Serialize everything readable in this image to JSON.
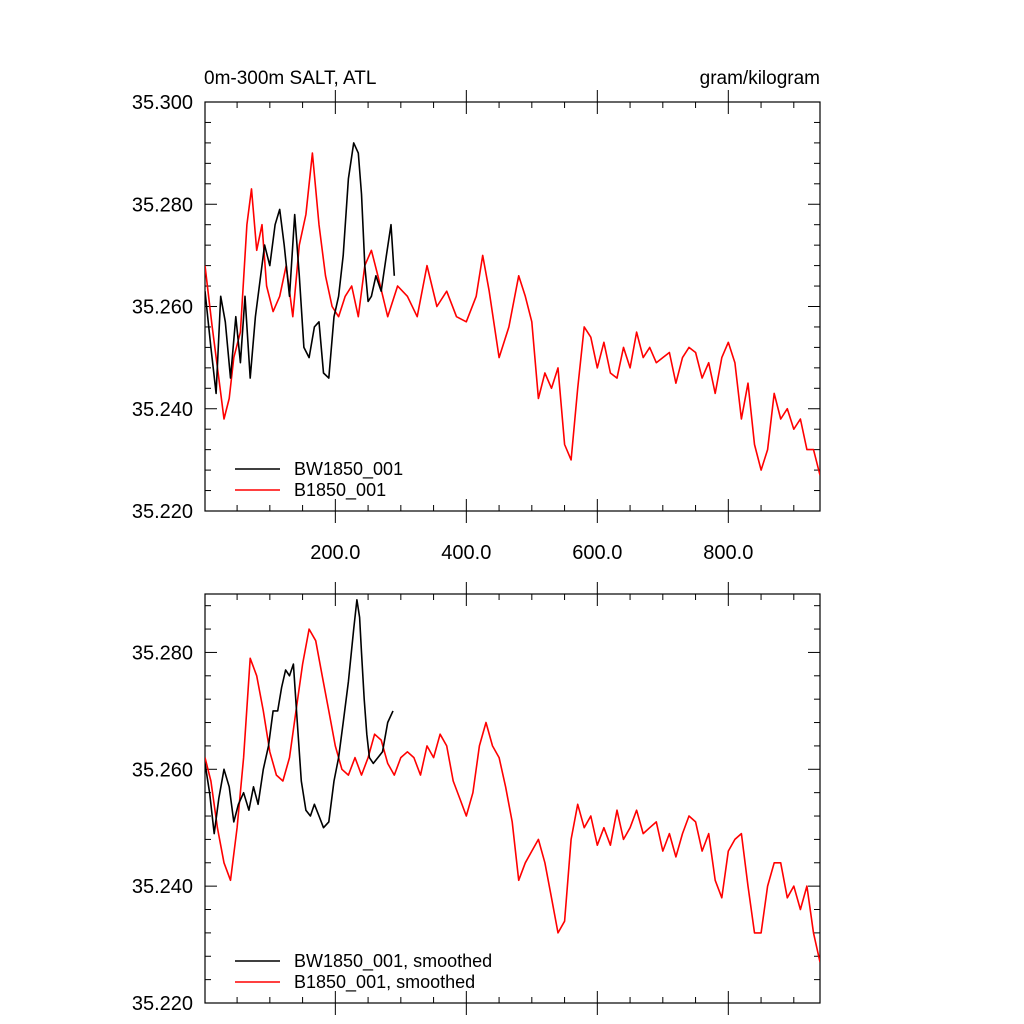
{
  "chart_data": [
    {
      "type": "line",
      "title_left": "0m-300m SALT, ATL",
      "title_right": "gram/kilogram",
      "xlabel": "",
      "ylabel": "",
      "xlim": [
        1,
        940
      ],
      "ylim": [
        35.22,
        35.3
      ],
      "x_ticks": [
        200,
        400,
        600,
        800
      ],
      "x_tick_labels": [
        "200.0",
        "400.0",
        "600.0",
        "800.0"
      ],
      "y_ticks": [
        35.22,
        35.24,
        35.26,
        35.28,
        35.3
      ],
      "y_tick_labels": [
        "35.220",
        "35.240",
        "35.260",
        "35.280",
        "35.300"
      ],
      "grid": false,
      "legend": "bottom-left",
      "series": [
        {
          "name": "BW1850_001",
          "color": "#000000",
          "x": [
            1,
            10,
            18,
            25,
            32,
            40,
            48,
            55,
            62,
            70,
            78,
            85,
            92,
            100,
            108,
            115,
            122,
            130,
            138,
            145,
            152,
            160,
            168,
            175,
            182,
            190,
            198,
            205,
            212,
            220,
            228,
            235,
            240,
            245,
            250,
            255,
            262,
            270,
            278,
            285,
            290
          ],
          "values": [
            35.263,
            35.252,
            35.243,
            35.262,
            35.257,
            35.246,
            35.258,
            35.249,
            35.262,
            35.246,
            35.258,
            35.265,
            35.272,
            35.268,
            35.276,
            35.279,
            35.272,
            35.262,
            35.278,
            35.266,
            35.252,
            35.25,
            35.256,
            35.257,
            35.247,
            35.246,
            35.258,
            35.262,
            35.27,
            35.285,
            35.292,
            35.29,
            35.282,
            35.268,
            35.261,
            35.262,
            35.266,
            35.263,
            35.27,
            35.276,
            35.266
          ]
        },
        {
          "name": "B1850_001",
          "color": "#ff0000",
          "x": [
            1,
            12,
            22,
            30,
            38,
            45,
            55,
            65,
            72,
            80,
            88,
            95,
            105,
            115,
            125,
            135,
            145,
            155,
            165,
            175,
            185,
            195,
            205,
            215,
            225,
            235,
            245,
            255,
            265,
            280,
            295,
            310,
            325,
            340,
            355,
            370,
            385,
            400,
            415,
            425,
            435,
            450,
            465,
            480,
            490,
            500,
            510,
            520,
            530,
            540,
            550,
            560,
            570,
            580,
            590,
            600,
            610,
            620,
            630,
            640,
            650,
            660,
            670,
            680,
            690,
            700,
            710,
            720,
            730,
            740,
            750,
            760,
            770,
            780,
            790,
            800,
            810,
            820,
            830,
            840,
            850,
            860,
            870,
            880,
            890,
            900,
            910,
            920,
            930,
            940
          ],
          "values": [
            35.268,
            35.256,
            35.246,
            35.238,
            35.242,
            35.25,
            35.255,
            35.276,
            35.283,
            35.271,
            35.276,
            35.264,
            35.259,
            35.262,
            35.268,
            35.258,
            35.272,
            35.278,
            35.29,
            35.276,
            35.266,
            35.26,
            35.258,
            35.262,
            35.264,
            35.258,
            35.268,
            35.271,
            35.266,
            35.258,
            35.264,
            35.262,
            35.258,
            35.268,
            35.26,
            35.263,
            35.258,
            35.257,
            35.262,
            35.27,
            35.263,
            35.25,
            35.256,
            35.266,
            35.262,
            35.257,
            35.242,
            35.247,
            35.244,
            35.248,
            35.233,
            35.23,
            35.244,
            35.256,
            35.254,
            35.248,
            35.253,
            35.247,
            35.246,
            35.252,
            35.248,
            35.255,
            35.25,
            35.252,
            35.249,
            35.25,
            35.251,
            35.245,
            35.25,
            35.252,
            35.251,
            35.246,
            35.249,
            35.243,
            35.25,
            35.253,
            35.249,
            35.238,
            35.245,
            35.233,
            35.228,
            35.232,
            35.243,
            35.238,
            35.24,
            35.236,
            35.238,
            35.232,
            35.232,
            35.227
          ]
        }
      ]
    },
    {
      "type": "line",
      "xlabel": "",
      "ylabel": "",
      "xlim": [
        1,
        940
      ],
      "ylim": [
        35.22,
        35.29
      ],
      "y_ticks": [
        35.22,
        35.24,
        35.26,
        35.28
      ],
      "y_tick_labels": [
        "35.220",
        "35.240",
        "35.260",
        "35.280"
      ],
      "grid": false,
      "legend": "bottom-left",
      "series": [
        {
          "name": "BW1850_001, smoothed",
          "color": "#000000",
          "x": [
            1,
            8,
            15,
            22,
            30,
            38,
            45,
            52,
            60,
            68,
            75,
            82,
            90,
            98,
            105,
            112,
            118,
            124,
            130,
            136,
            142,
            148,
            155,
            162,
            168,
            175,
            182,
            190,
            198,
            205,
            212,
            220,
            228,
            233,
            237,
            240,
            244,
            248,
            252,
            258,
            265,
            272,
            280,
            288
          ],
          "values": [
            35.261,
            35.256,
            35.249,
            35.255,
            35.26,
            35.257,
            35.251,
            35.254,
            35.256,
            35.253,
            35.257,
            35.254,
            35.26,
            35.264,
            35.27,
            35.27,
            35.274,
            35.277,
            35.276,
            35.278,
            35.268,
            35.258,
            35.253,
            35.252,
            35.254,
            35.252,
            35.25,
            35.251,
            35.258,
            35.262,
            35.268,
            35.275,
            35.284,
            35.289,
            35.286,
            35.28,
            35.272,
            35.266,
            35.262,
            35.261,
            35.262,
            35.263,
            35.268,
            35.27
          ]
        },
        {
          "name": "B1850_001, smoothed",
          "color": "#ff0000",
          "x": [
            1,
            10,
            20,
            30,
            40,
            50,
            60,
            70,
            80,
            90,
            100,
            110,
            120,
            130,
            140,
            150,
            160,
            170,
            180,
            190,
            200,
            210,
            220,
            230,
            240,
            250,
            260,
            270,
            280,
            290,
            300,
            310,
            320,
            330,
            340,
            350,
            360,
            370,
            380,
            390,
            400,
            410,
            420,
            430,
            440,
            450,
            460,
            470,
            480,
            490,
            500,
            510,
            520,
            530,
            540,
            550,
            560,
            570,
            580,
            590,
            600,
            610,
            620,
            630,
            640,
            650,
            660,
            670,
            680,
            690,
            700,
            710,
            720,
            730,
            740,
            750,
            760,
            770,
            780,
            790,
            800,
            810,
            820,
            830,
            840,
            850,
            860,
            870,
            880,
            890,
            900,
            910,
            920,
            930,
            940
          ],
          "values": [
            35.262,
            35.258,
            35.25,
            35.244,
            35.241,
            35.25,
            35.262,
            35.279,
            35.276,
            35.27,
            35.263,
            35.259,
            35.258,
            35.262,
            35.27,
            35.278,
            35.284,
            35.282,
            35.276,
            35.27,
            35.264,
            35.26,
            35.259,
            35.262,
            35.259,
            35.262,
            35.266,
            35.265,
            35.261,
            35.259,
            35.262,
            35.263,
            35.262,
            35.259,
            35.264,
            35.262,
            35.266,
            35.264,
            35.258,
            35.255,
            35.252,
            35.256,
            35.264,
            35.268,
            35.264,
            35.262,
            35.257,
            35.251,
            35.241,
            35.244,
            35.246,
            35.248,
            35.244,
            35.238,
            35.232,
            35.234,
            35.248,
            35.254,
            35.25,
            35.252,
            35.247,
            35.25,
            35.247,
            35.253,
            35.248,
            35.25,
            35.253,
            35.249,
            35.25,
            35.251,
            35.246,
            35.249,
            35.245,
            35.249,
            35.252,
            35.251,
            35.246,
            35.249,
            35.241,
            35.238,
            35.246,
            35.248,
            35.249,
            35.24,
            35.232,
            35.232,
            35.24,
            35.244,
            35.244,
            35.238,
            35.24,
            35.236,
            35.24,
            35.232,
            35.227
          ]
        }
      ]
    }
  ]
}
